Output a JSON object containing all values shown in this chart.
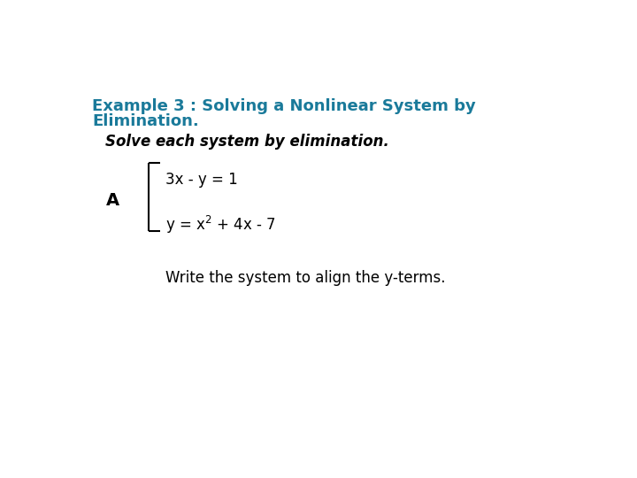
{
  "bg_color": "#ffffff",
  "title_line1": "Example 3 : Solving a Nonlinear System by",
  "title_line2": "Elimination.",
  "title_color": "#1a7a9a",
  "title_fontsize": 13,
  "subtitle": "Solve each system by elimination.",
  "subtitle_fontsize": 12,
  "label_A": "A",
  "label_A_fontsize": 14,
  "eq1": "3x - y = 1",
  "eq2": "y = x",
  "eq2_super": "2",
  "eq2_rest": " + 4x - 7",
  "eq_fontsize": 12,
  "footer": "Write the system to align the y-terms.",
  "footer_fontsize": 12,
  "footer_color": "#000000",
  "bracket_color": "#000000",
  "bracket_lw": 1.5
}
